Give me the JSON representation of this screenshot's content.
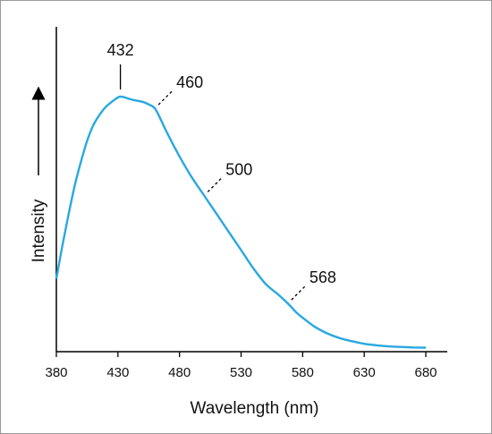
{
  "chart_data": {
    "type": "line",
    "title": "",
    "xlabel": "Wavelength (nm)",
    "ylabel": "Intensity",
    "xlim": [
      380,
      680
    ],
    "ylim": [
      0,
      1
    ],
    "grid": false,
    "legend": "none",
    "y_ticks_shown": false,
    "x_ticks": [
      380,
      430,
      480,
      530,
      580,
      630,
      680
    ],
    "x_tick_labels": [
      "380",
      "430",
      "480",
      "530",
      "580",
      "630",
      "680"
    ],
    "series": [
      {
        "color": "#29a8e0",
        "x": [
          380,
          385,
          390,
          395,
          400,
          405,
          410,
          415,
          420,
          425,
          430,
          432,
          435,
          440,
          445,
          450,
          455,
          460,
          465,
          470,
          480,
          490,
          500,
          510,
          520,
          530,
          540,
          550,
          560,
          568,
          575,
          580,
          590,
          600,
          610,
          620,
          630,
          640,
          650,
          660,
          670,
          680
        ],
        "y": [
          0.27,
          0.4,
          0.52,
          0.63,
          0.72,
          0.8,
          0.86,
          0.9,
          0.93,
          0.95,
          0.967,
          0.97,
          0.968,
          0.96,
          0.955,
          0.95,
          0.94,
          0.925,
          0.88,
          0.83,
          0.74,
          0.66,
          0.59,
          0.52,
          0.45,
          0.38,
          0.31,
          0.25,
          0.21,
          0.175,
          0.14,
          0.12,
          0.085,
          0.06,
          0.042,
          0.03,
          0.02,
          0.014,
          0.01,
          0.008,
          0.006,
          0.005
        ]
      }
    ],
    "annotations": [
      {
        "label": "432",
        "x": 432,
        "style": "solid"
      },
      {
        "label": "460",
        "x": 460,
        "style": "dashed"
      },
      {
        "label": "500",
        "x": 500,
        "style": "dashed"
      },
      {
        "label": "568",
        "x": 568,
        "style": "dashed"
      }
    ]
  }
}
